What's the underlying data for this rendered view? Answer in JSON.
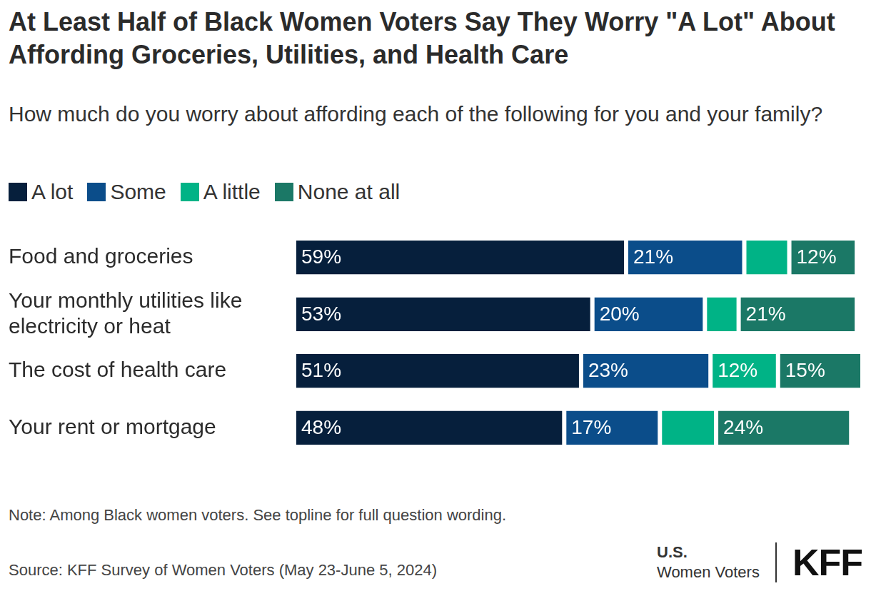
{
  "chart_data": {
    "type": "bar",
    "orientation": "horizontal",
    "stacked": true,
    "title": "At Least Half of Black Women Voters Say They Worry \"A Lot\" About Affording Groceries, Utilities, and Health Care",
    "subtitle": "How much do you worry about affording each of the following for you and your family?",
    "categories": [
      "Food and groceries",
      "Your monthly utilities like electricity or heat",
      "The cost of health care",
      "Your rent or mortgage"
    ],
    "series": [
      {
        "name": "A lot",
        "color": "#061f3c",
        "values": [
          59,
          53,
          51,
          48
        ],
        "value_labels": [
          "59%",
          "53%",
          "51%",
          "48%"
        ]
      },
      {
        "name": "Some",
        "color": "#0b4d8a",
        "values": [
          21,
          20,
          23,
          17
        ],
        "value_labels": [
          "21%",
          "20%",
          "23%",
          "17%"
        ]
      },
      {
        "name": "A little",
        "color": "#00b386",
        "values": [
          8,
          6,
          12,
          10
        ],
        "value_labels": [
          null,
          null,
          "12%",
          null
        ]
      },
      {
        "name": "None at all",
        "color": "#1b7866",
        "values": [
          12,
          21,
          15,
          24
        ],
        "value_labels": [
          "12%",
          "21%",
          "15%",
          "24%"
        ]
      }
    ],
    "xlim": [
      0,
      101
    ],
    "grid": false,
    "legend": "top-left",
    "data_labels": true,
    "tick_labels": "y",
    "note": "Note: Among Black women voters. See topline for full question wording.",
    "source": "Source: KFF Survey of Women Voters (May 23-June 5, 2024)",
    "branding": {
      "survey": [
        "U.S.",
        "Women Voters"
      ],
      "logo": "KFF"
    }
  }
}
